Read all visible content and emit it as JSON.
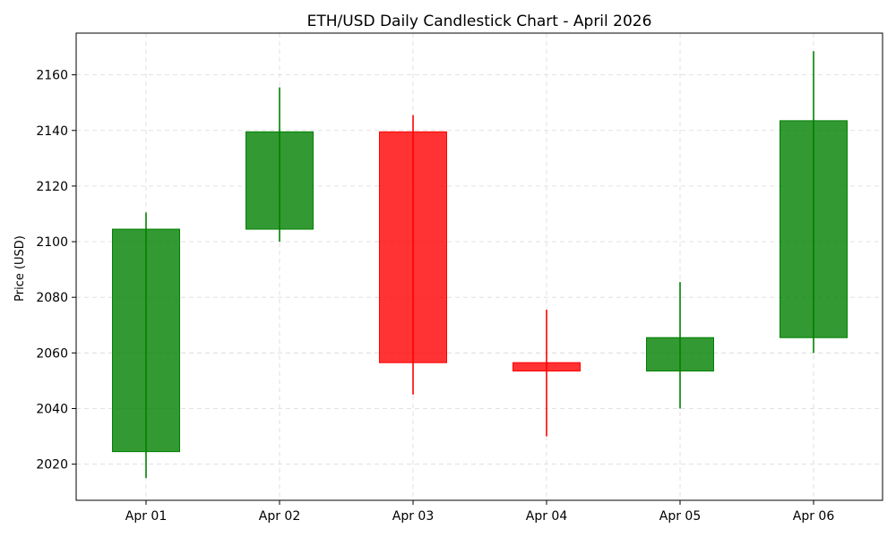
{
  "chart_data": {
    "type": "candlestick",
    "title": "ETH/USD Daily Candlestick Chart - April 2026",
    "xlabel": "",
    "ylabel": "Price (USD)",
    "categories": [
      "Apr 01",
      "Apr 02",
      "Apr 03",
      "Apr 04",
      "Apr 05",
      "Apr 06"
    ],
    "candles": [
      {
        "date": "Apr 01",
        "open": 2024.5,
        "high": 2110.5,
        "low": 2015.0,
        "close": 2104.5
      },
      {
        "date": "Apr 02",
        "open": 2104.5,
        "high": 2155.5,
        "low": 2100.0,
        "close": 2139.5
      },
      {
        "date": "Apr 03",
        "open": 2139.5,
        "high": 2145.5,
        "low": 2045.0,
        "close": 2056.5
      },
      {
        "date": "Apr 04",
        "open": 2056.5,
        "high": 2075.5,
        "low": 2030.0,
        "close": 2053.5
      },
      {
        "date": "Apr 05",
        "open": 2053.5,
        "high": 2085.5,
        "low": 2040.0,
        "close": 2065.5
      },
      {
        "date": "Apr 06",
        "open": 2065.5,
        "high": 2168.5,
        "low": 2060.0,
        "close": 2143.5
      }
    ],
    "y_ticks": [
      2020,
      2040,
      2060,
      2080,
      2100,
      2120,
      2140,
      2160
    ],
    "ylim": [
      2007,
      2175
    ],
    "grid": true,
    "grid_style": "dashed",
    "colors": {
      "up_body": "#008000",
      "up_wick": "#008000",
      "down_body": "#ff0000",
      "down_wick": "#ff0000",
      "axis": "#000000",
      "grid": "#d9d9d9"
    },
    "body_opacity": 0.8
  }
}
